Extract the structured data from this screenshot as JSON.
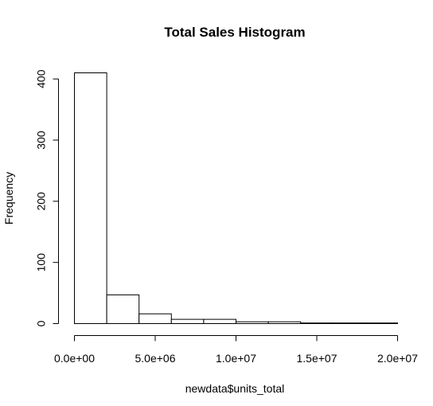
{
  "chart_data": {
    "type": "bar",
    "title": "Total Sales Histogram",
    "xlabel": "newdata$units_total",
    "ylabel": "Frequency",
    "bin_edges": [
      0,
      2000000,
      4000000,
      6000000,
      8000000,
      10000000,
      12000000,
      14000000,
      16000000,
      18000000,
      20000000
    ],
    "values": [
      410,
      47,
      16,
      7,
      7,
      3,
      3,
      1,
      1,
      1
    ],
    "xlim": [
      0,
      20000000
    ],
    "ylim": [
      0,
      410
    ],
    "x_ticks": [
      0,
      5000000,
      10000000,
      15000000,
      20000000
    ],
    "x_tick_labels": [
      "0.0e+00",
      "5.0e+06",
      "1.0e+07",
      "1.5e+07",
      "2.0e+07"
    ],
    "y_ticks": [
      0,
      100,
      200,
      300,
      400
    ],
    "y_tick_labels": [
      "0",
      "100",
      "200",
      "300",
      "400"
    ],
    "grid": false,
    "legend": "none"
  }
}
